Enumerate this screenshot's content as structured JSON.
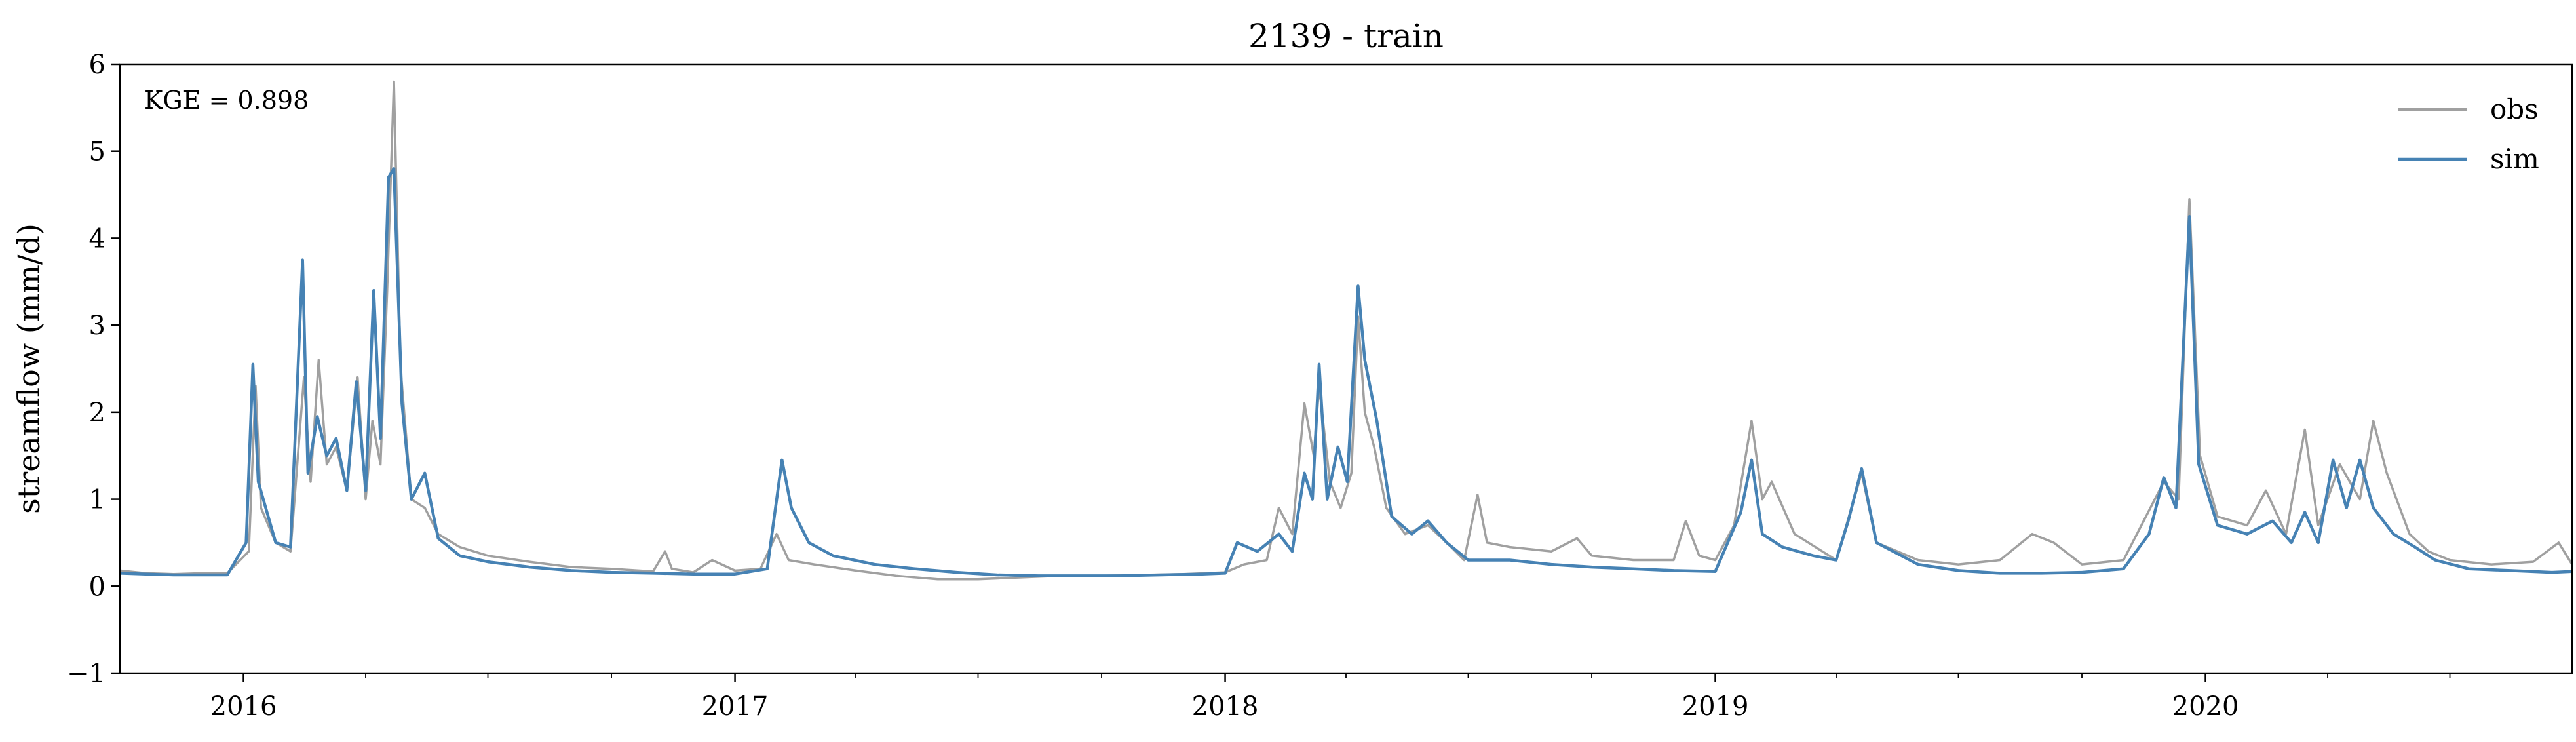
{
  "chart_data": {
    "type": "line",
    "title": "2139 - train",
    "xlabel": "",
    "ylabel": "streamflow (mm/d)",
    "xlim": [
      "2015-10-01",
      "2020-09-30"
    ],
    "ylim": [
      -1,
      6
    ],
    "yticks": [
      -1,
      0,
      1,
      2,
      3,
      4,
      5,
      6
    ],
    "yticklabels": [
      "−1",
      "0",
      "1",
      "2",
      "3",
      "4",
      "5",
      "6"
    ],
    "xticks": [
      "2016-01-01",
      "2017-01-01",
      "2018-01-01",
      "2019-01-01",
      "2020-01-01"
    ],
    "xticklabels": [
      "2016",
      "2017",
      "2018",
      "2019",
      "2020"
    ],
    "minor_xticks": "quarterly",
    "grid": false,
    "legend": {
      "placement": "top-right",
      "entries": [
        "obs",
        "sim"
      ]
    },
    "annotation": "KGE = 0.898",
    "colors": {
      "obs": "#a0a0a0",
      "sim": "#4682b4"
    },
    "series": [
      {
        "name": "obs",
        "points": [
          [
            "2015-10-01",
            0.18
          ],
          [
            "2015-10-20",
            0.15
          ],
          [
            "2015-11-10",
            0.14
          ],
          [
            "2015-12-01",
            0.15
          ],
          [
            "2015-12-20",
            0.15
          ],
          [
            "2016-01-05",
            0.4
          ],
          [
            "2016-01-10",
            2.3
          ],
          [
            "2016-01-14",
            0.9
          ],
          [
            "2016-01-25",
            0.5
          ],
          [
            "2016-02-05",
            0.4
          ],
          [
            "2016-02-15",
            2.4
          ],
          [
            "2016-02-20",
            1.2
          ],
          [
            "2016-02-26",
            2.6
          ],
          [
            "2016-03-03",
            1.4
          ],
          [
            "2016-03-10",
            1.6
          ],
          [
            "2016-03-18",
            1.1
          ],
          [
            "2016-03-26",
            2.4
          ],
          [
            "2016-04-01",
            1.0
          ],
          [
            "2016-04-06",
            1.9
          ],
          [
            "2016-04-12",
            1.4
          ],
          [
            "2016-04-17",
            3.4
          ],
          [
            "2016-04-22",
            5.8
          ],
          [
            "2016-04-27",
            2.5
          ],
          [
            "2016-05-05",
            1.0
          ],
          [
            "2016-05-15",
            0.9
          ],
          [
            "2016-05-25",
            0.6
          ],
          [
            "2016-06-10",
            0.45
          ],
          [
            "2016-07-01",
            0.35
          ],
          [
            "2016-08-01",
            0.28
          ],
          [
            "2016-09-01",
            0.22
          ],
          [
            "2016-10-01",
            0.2
          ],
          [
            "2016-11-01",
            0.17
          ],
          [
            "2016-11-10",
            0.4
          ],
          [
            "2016-11-15",
            0.2
          ],
          [
            "2016-12-01",
            0.16
          ],
          [
            "2016-12-15",
            0.3
          ],
          [
            "2017-01-01",
            0.18
          ],
          [
            "2017-01-20",
            0.2
          ],
          [
            "2017-02-01",
            0.6
          ],
          [
            "2017-02-10",
            0.3
          ],
          [
            "2017-03-01",
            0.25
          ],
          [
            "2017-04-01",
            0.18
          ],
          [
            "2017-05-01",
            0.12
          ],
          [
            "2017-06-01",
            0.08
          ],
          [
            "2017-07-01",
            0.08
          ],
          [
            "2017-08-01",
            0.1
          ],
          [
            "2017-09-01",
            0.12
          ],
          [
            "2017-10-01",
            0.12
          ],
          [
            "2017-11-01",
            0.13
          ],
          [
            "2017-12-01",
            0.14
          ],
          [
            "2018-01-01",
            0.16
          ],
          [
            "2018-01-15",
            0.25
          ],
          [
            "2018-02-01",
            0.3
          ],
          [
            "2018-02-10",
            0.9
          ],
          [
            "2018-02-20",
            0.6
          ],
          [
            "2018-03-01",
            2.1
          ],
          [
            "2018-03-08",
            1.5
          ],
          [
            "2018-03-12",
            2.3
          ],
          [
            "2018-03-20",
            1.2
          ],
          [
            "2018-03-28",
            0.9
          ],
          [
            "2018-04-05",
            1.3
          ],
          [
            "2018-04-10",
            3.1
          ],
          [
            "2018-04-15",
            2.0
          ],
          [
            "2018-04-22",
            1.6
          ],
          [
            "2018-05-01",
            0.9
          ],
          [
            "2018-05-15",
            0.6
          ],
          [
            "2018-06-01",
            0.7
          ],
          [
            "2018-06-15",
            0.5
          ],
          [
            "2018-06-28",
            0.3
          ],
          [
            "2018-07-08",
            1.05
          ],
          [
            "2018-07-15",
            0.5
          ],
          [
            "2018-08-01",
            0.45
          ],
          [
            "2018-09-01",
            0.4
          ],
          [
            "2018-09-20",
            0.55
          ],
          [
            "2018-10-01",
            0.35
          ],
          [
            "2018-11-01",
            0.3
          ],
          [
            "2018-12-01",
            0.3
          ],
          [
            "2018-12-10",
            0.75
          ],
          [
            "2018-12-20",
            0.35
          ],
          [
            "2019-01-01",
            0.3
          ],
          [
            "2019-01-15",
            0.7
          ],
          [
            "2019-01-28",
            1.9
          ],
          [
            "2019-02-05",
            1.0
          ],
          [
            "2019-02-12",
            1.2
          ],
          [
            "2019-03-01",
            0.6
          ],
          [
            "2019-04-01",
            0.3
          ],
          [
            "2019-04-20",
            1.3
          ],
          [
            "2019-05-01",
            0.5
          ],
          [
            "2019-06-01",
            0.3
          ],
          [
            "2019-07-01",
            0.25
          ],
          [
            "2019-08-01",
            0.3
          ],
          [
            "2019-08-25",
            0.6
          ],
          [
            "2019-09-10",
            0.5
          ],
          [
            "2019-10-01",
            0.25
          ],
          [
            "2019-11-01",
            0.3
          ],
          [
            "2019-12-01",
            1.2
          ],
          [
            "2019-12-12",
            1.0
          ],
          [
            "2019-12-20",
            4.45
          ],
          [
            "2019-12-28",
            1.5
          ],
          [
            "2020-01-10",
            0.8
          ],
          [
            "2020-02-01",
            0.7
          ],
          [
            "2020-02-15",
            1.1
          ],
          [
            "2020-03-01",
            0.6
          ],
          [
            "2020-03-15",
            1.8
          ],
          [
            "2020-03-25",
            0.7
          ],
          [
            "2020-04-10",
            1.4
          ],
          [
            "2020-04-25",
            1.0
          ],
          [
            "2020-05-05",
            1.9
          ],
          [
            "2020-05-15",
            1.3
          ],
          [
            "2020-06-01",
            0.6
          ],
          [
            "2020-06-15",
            0.4
          ],
          [
            "2020-07-01",
            0.3
          ],
          [
            "2020-08-01",
            0.25
          ],
          [
            "2020-09-01",
            0.28
          ],
          [
            "2020-09-20",
            0.5
          ],
          [
            "2020-09-30",
            0.25
          ]
        ]
      },
      {
        "name": "sim",
        "points": [
          [
            "2015-10-01",
            0.15
          ],
          [
            "2015-10-20",
            0.14
          ],
          [
            "2015-11-10",
            0.13
          ],
          [
            "2015-12-01",
            0.13
          ],
          [
            "2015-12-20",
            0.13
          ],
          [
            "2016-01-03",
            0.5
          ],
          [
            "2016-01-08",
            2.55
          ],
          [
            "2016-01-12",
            1.2
          ],
          [
            "2016-01-25",
            0.5
          ],
          [
            "2016-02-05",
            0.45
          ],
          [
            "2016-02-14",
            3.75
          ],
          [
            "2016-02-18",
            1.3
          ],
          [
            "2016-02-25",
            1.95
          ],
          [
            "2016-03-03",
            1.5
          ],
          [
            "2016-03-10",
            1.7
          ],
          [
            "2016-03-18",
            1.1
          ],
          [
            "2016-03-25",
            2.35
          ],
          [
            "2016-04-01",
            1.1
          ],
          [
            "2016-04-07",
            3.4
          ],
          [
            "2016-04-12",
            1.7
          ],
          [
            "2016-04-18",
            4.7
          ],
          [
            "2016-04-22",
            4.8
          ],
          [
            "2016-04-28",
            2.1
          ],
          [
            "2016-05-05",
            1.0
          ],
          [
            "2016-05-15",
            1.3
          ],
          [
            "2016-05-25",
            0.55
          ],
          [
            "2016-06-10",
            0.35
          ],
          [
            "2016-07-01",
            0.28
          ],
          [
            "2016-08-01",
            0.22
          ],
          [
            "2016-09-01",
            0.18
          ],
          [
            "2016-10-01",
            0.16
          ],
          [
            "2016-11-01",
            0.15
          ],
          [
            "2016-12-01",
            0.14
          ],
          [
            "2017-01-01",
            0.14
          ],
          [
            "2017-01-25",
            0.2
          ],
          [
            "2017-02-05",
            1.45
          ],
          [
            "2017-02-12",
            0.9
          ],
          [
            "2017-02-25",
            0.5
          ],
          [
            "2017-03-15",
            0.35
          ],
          [
            "2017-04-15",
            0.25
          ],
          [
            "2017-05-15",
            0.2
          ],
          [
            "2017-06-15",
            0.16
          ],
          [
            "2017-07-15",
            0.13
          ],
          [
            "2017-08-15",
            0.12
          ],
          [
            "2017-09-15",
            0.12
          ],
          [
            "2017-10-15",
            0.12
          ],
          [
            "2017-11-15",
            0.13
          ],
          [
            "2017-12-15",
            0.14
          ],
          [
            "2018-01-01",
            0.15
          ],
          [
            "2018-01-10",
            0.5
          ],
          [
            "2018-01-25",
            0.4
          ],
          [
            "2018-02-10",
            0.6
          ],
          [
            "2018-02-20",
            0.4
          ],
          [
            "2018-03-01",
            1.3
          ],
          [
            "2018-03-07",
            1.0
          ],
          [
            "2018-03-12",
            2.55
          ],
          [
            "2018-03-18",
            1.0
          ],
          [
            "2018-03-26",
            1.6
          ],
          [
            "2018-04-02",
            1.2
          ],
          [
            "2018-04-10",
            3.45
          ],
          [
            "2018-04-15",
            2.6
          ],
          [
            "2018-04-24",
            1.9
          ],
          [
            "2018-05-05",
            0.8
          ],
          [
            "2018-05-20",
            0.6
          ],
          [
            "2018-06-01",
            0.75
          ],
          [
            "2018-06-15",
            0.5
          ],
          [
            "2018-07-01",
            0.3
          ],
          [
            "2018-08-01",
            0.3
          ],
          [
            "2018-09-01",
            0.25
          ],
          [
            "2018-10-01",
            0.22
          ],
          [
            "2018-11-01",
            0.2
          ],
          [
            "2018-12-01",
            0.18
          ],
          [
            "2019-01-01",
            0.17
          ],
          [
            "2019-01-20",
            0.85
          ],
          [
            "2019-01-28",
            1.45
          ],
          [
            "2019-02-05",
            0.6
          ],
          [
            "2019-02-20",
            0.45
          ],
          [
            "2019-03-15",
            0.35
          ],
          [
            "2019-04-01",
            0.3
          ],
          [
            "2019-04-10",
            0.75
          ],
          [
            "2019-04-20",
            1.35
          ],
          [
            "2019-05-01",
            0.5
          ],
          [
            "2019-06-01",
            0.25
          ],
          [
            "2019-07-01",
            0.18
          ],
          [
            "2019-08-01",
            0.15
          ],
          [
            "2019-09-01",
            0.15
          ],
          [
            "2019-10-01",
            0.16
          ],
          [
            "2019-11-01",
            0.2
          ],
          [
            "2019-11-20",
            0.6
          ],
          [
            "2019-12-01",
            1.25
          ],
          [
            "2019-12-10",
            0.9
          ],
          [
            "2019-12-20",
            4.25
          ],
          [
            "2019-12-27",
            1.4
          ],
          [
            "2020-01-10",
            0.7
          ],
          [
            "2020-02-01",
            0.6
          ],
          [
            "2020-02-20",
            0.75
          ],
          [
            "2020-03-05",
            0.5
          ],
          [
            "2020-03-15",
            0.85
          ],
          [
            "2020-03-25",
            0.5
          ],
          [
            "2020-04-05",
            1.45
          ],
          [
            "2020-04-15",
            0.9
          ],
          [
            "2020-04-25",
            1.45
          ],
          [
            "2020-05-05",
            0.9
          ],
          [
            "2020-05-20",
            0.6
          ],
          [
            "2020-06-05",
            0.45
          ],
          [
            "2020-06-20",
            0.3
          ],
          [
            "2020-07-15",
            0.2
          ],
          [
            "2020-08-15",
            0.18
          ],
          [
            "2020-09-15",
            0.16
          ],
          [
            "2020-09-30",
            0.17
          ]
        ]
      }
    ]
  }
}
